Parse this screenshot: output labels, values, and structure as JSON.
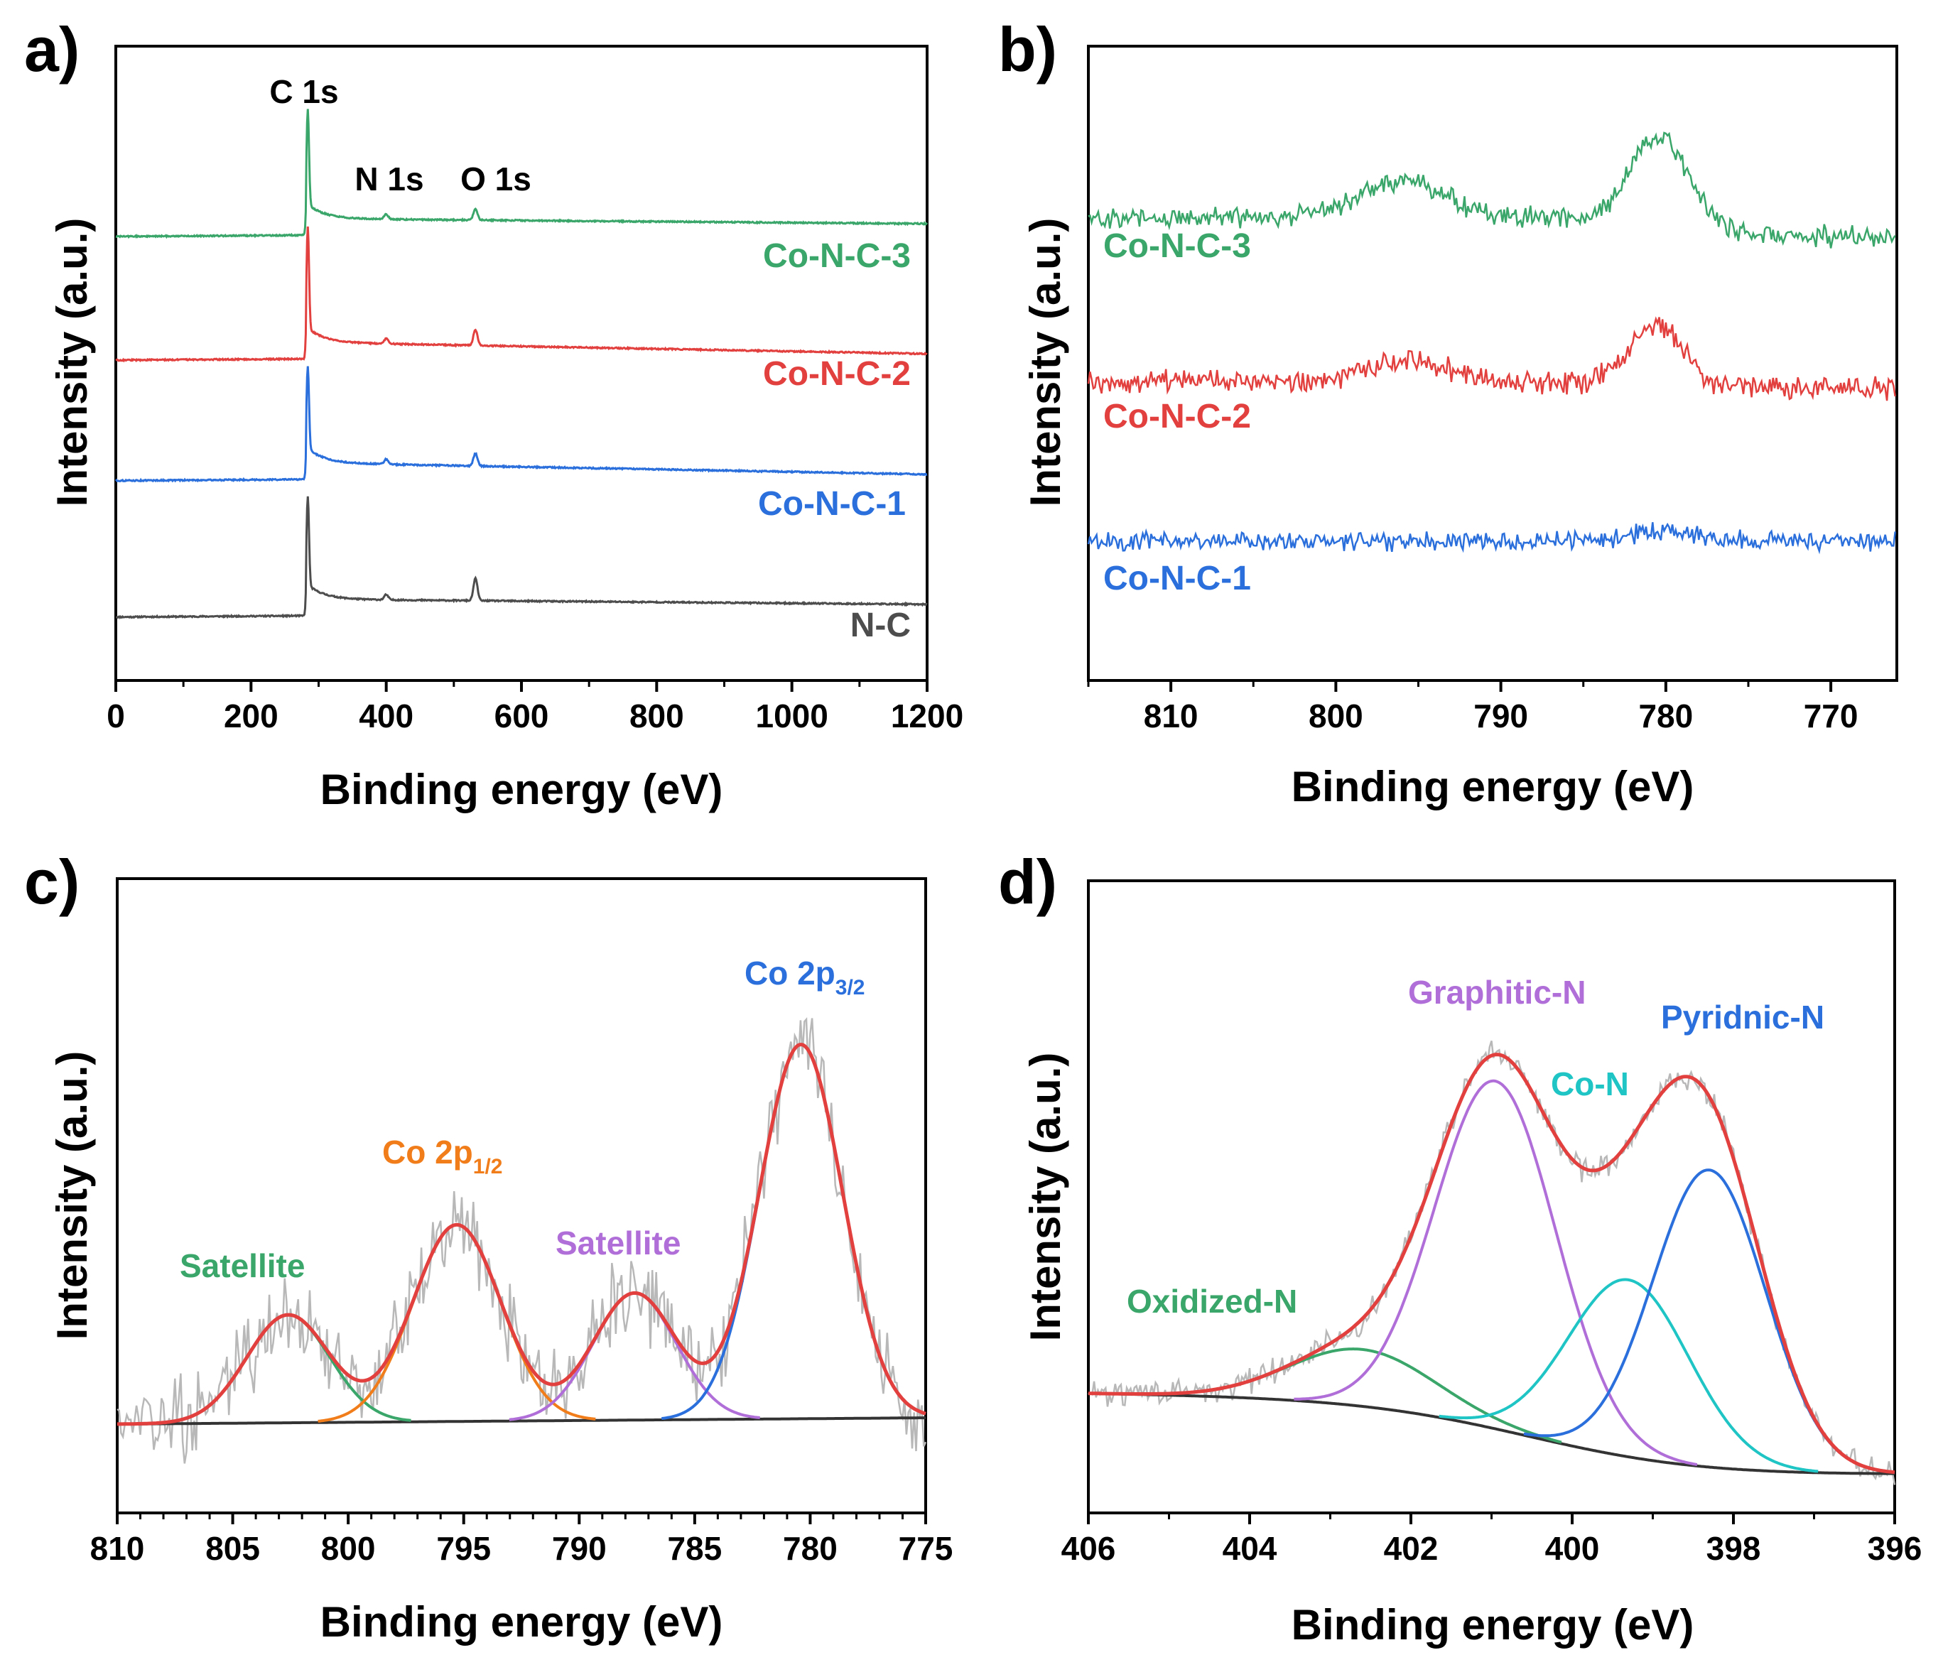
{
  "chart_data": [
    {
      "panel": "a)",
      "type": "line",
      "title": "",
      "xlabel": "Binding energy (eV)",
      "ylabel": "Intensity (a.u.)",
      "xlim": [
        0,
        1200
      ],
      "xticks": [
        "0",
        "200",
        "400",
        "600",
        "800",
        "1000",
        "1200"
      ],
      "yticks": [],
      "legend": "inline",
      "peak_labels": [
        {
          "text": "C 1s",
          "x": 284
        },
        {
          "text": "N 1s",
          "x": 400
        },
        {
          "text": "O 1s",
          "x": 532
        }
      ],
      "series": [
        {
          "name": "N-C",
          "color": "#4d4d4d",
          "baseline": 0.1,
          "end": 0.12,
          "peaks": [
            {
              "x": 284,
              "h": 0.14,
              "w": 1.8
            },
            {
              "x": 532,
              "h": 0.035,
              "w": 3
            },
            {
              "x": 400,
              "h": 0.008,
              "w": 3
            }
          ]
        },
        {
          "name": "Co-N-C-1",
          "color": "#2a6fdb",
          "baseline": 0.315,
          "end": 0.325,
          "peaks": [
            {
              "x": 284,
              "h": 0.13,
              "w": 1.8
            },
            {
              "x": 532,
              "h": 0.02,
              "w": 3
            },
            {
              "x": 400,
              "h": 0.008,
              "w": 3
            }
          ]
        },
        {
          "name": "Co-N-C-2",
          "color": "#e2403f",
          "baseline": 0.505,
          "end": 0.515,
          "peaks": [
            {
              "x": 284,
              "h": 0.16,
              "w": 1.8
            },
            {
              "x": 532,
              "h": 0.025,
              "w": 3
            },
            {
              "x": 400,
              "h": 0.008,
              "w": 3
            }
          ]
        },
        {
          "name": "Co-N-C-3",
          "color": "#3aa66a",
          "baseline": 0.7,
          "end": 0.72,
          "peaks": [
            {
              "x": 284,
              "h": 0.15,
              "w": 1.8
            },
            {
              "x": 532,
              "h": 0.018,
              "w": 3
            },
            {
              "x": 400,
              "h": 0.008,
              "w": 3
            }
          ]
        }
      ]
    },
    {
      "panel": "b)",
      "type": "line",
      "title": "",
      "xlabel": "Binding energy (eV)",
      "ylabel": "Intensity (a.u.)",
      "xlim": [
        815,
        766
      ],
      "xticks": [
        "810",
        "800",
        "790",
        "780",
        "770"
      ],
      "yticks": [],
      "legend": "inline",
      "series": [
        {
          "name": "Co-N-C-1",
          "color": "#2a6fdb",
          "base": 0.22,
          "noise": 0.018,
          "peaks": [
            {
              "x": 780,
              "h": 0.015,
              "w": 2
            }
          ]
        },
        {
          "name": "Co-N-C-2",
          "color": "#e2403f",
          "base": 0.47,
          "noise": 0.022,
          "peaks": [
            {
              "x": 780.5,
              "h": 0.09,
              "w": 1.6
            },
            {
              "x": 795.5,
              "h": 0.03,
              "w": 2.5
            }
          ]
        },
        {
          "name": "Co-N-C-3",
          "color": "#3aa66a",
          "base": 0.73,
          "noise": 0.02,
          "peaks": [
            {
              "x": 780.5,
              "h": 0.13,
              "w": 1.6
            },
            {
              "x": 796,
              "h": 0.06,
              "w": 2.5
            }
          ]
        }
      ]
    },
    {
      "panel": "c)",
      "type": "line",
      "title": "",
      "xlabel": "Binding energy (eV)",
      "ylabel": "Intensity (a.u.)",
      "xlim": [
        810,
        775
      ],
      "xticks": [
        "810",
        "805",
        "800",
        "795",
        "790",
        "785",
        "780",
        "775"
      ],
      "yticks": [],
      "legend": "inline",
      "background": [
        0.14,
        0.15
      ],
      "raw_noise": 0.08,
      "components": [
        {
          "name": "Satellite",
          "center": 802.6,
          "height": 0.17,
          "sigma": 1.8,
          "color": "#3aa66a"
        },
        {
          "name": "Co 2p1/2",
          "center": 795.3,
          "height": 0.31,
          "sigma": 1.9,
          "color": "#f07d1a"
        },
        {
          "name": "Satellite",
          "center": 787.6,
          "height": 0.2,
          "sigma": 1.8,
          "color": "#b06fd8"
        },
        {
          "name": "Co 2p3/2",
          "center": 780.4,
          "height": 0.59,
          "sigma": 1.8,
          "color": "#2a6fdb"
        }
      ],
      "envelope_color": "#e2403f",
      "background_color": "#333333",
      "raw_color": "#b8b8b8",
      "labels": [
        {
          "text": "Satellite",
          "color": "#3aa66a"
        },
        {
          "main": "Co 2p",
          "sub": "1/2",
          "color": "#f07d1a"
        },
        {
          "text": "Satellite",
          "color": "#b06fd8"
        },
        {
          "main": "Co 2p",
          "sub": "3/2",
          "color": "#2a6fdb"
        }
      ]
    },
    {
      "panel": "d)",
      "type": "line",
      "title": "",
      "xlabel": "Binding energy (eV)",
      "ylabel": "Intensity (a.u.)",
      "xlim": [
        406,
        396
      ],
      "xticks": [
        "406",
        "404",
        "402",
        "400",
        "398",
        "396"
      ],
      "yticks": [],
      "legend": "inline",
      "background": {
        "left": 0.19,
        "right": 0.06
      },
      "raw_noise": 0.025,
      "components": [
        {
          "name": "Oxidized-N",
          "center": 402.6,
          "height": 0.09,
          "sigma": 0.9,
          "color": "#3aa66a"
        },
        {
          "name": "Graphitic-N",
          "center": 400.95,
          "height": 0.55,
          "sigma": 0.75,
          "color": "#b06fd8"
        },
        {
          "name": "Co-N",
          "center": 399.3,
          "height": 0.28,
          "sigma": 0.75,
          "color": "#1fc4c4"
        },
        {
          "name": "Pyridnic-N",
          "center": 398.3,
          "height": 0.47,
          "sigma": 0.7,
          "color": "#2a6fdb"
        }
      ],
      "envelope_color": "#e2403f",
      "background_color": "#333333",
      "raw_color": "#b8b8b8",
      "labels": [
        {
          "text": "Oxidized-N",
          "color": "#3aa66a"
        },
        {
          "text": "Graphitic-N",
          "color": "#b06fd8"
        },
        {
          "text": "Co-N",
          "color": "#1fc4c4"
        },
        {
          "text": "Pyridnic-N",
          "color": "#2a6fdb"
        }
      ]
    }
  ]
}
